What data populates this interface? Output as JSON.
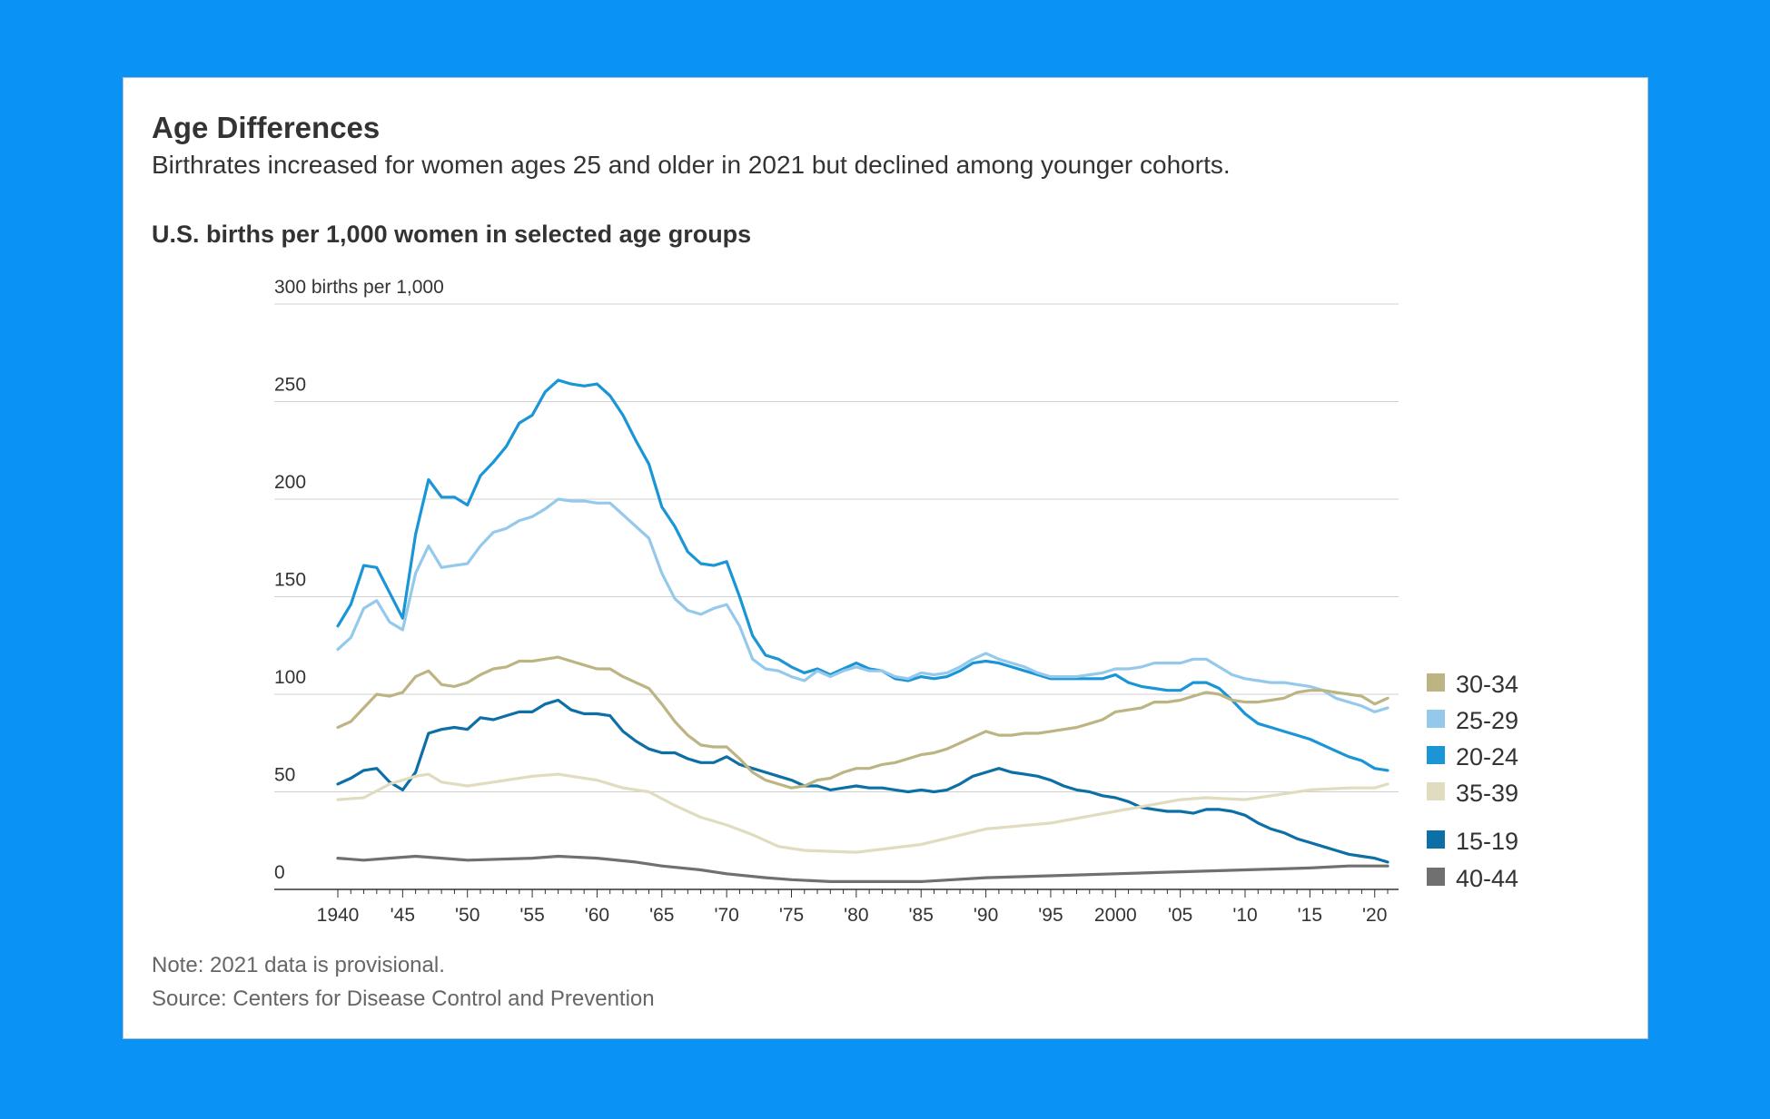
{
  "title": "Age Differences",
  "subtitle": "Birthrates increased for women ages 25 and older in 2021 but declined among younger cohorts.",
  "chart_title": "U.S. births per 1,000 women in selected age groups",
  "note": "Note: 2021 data is provisional.",
  "source": "Source: Centers for Disease Control and Prevention",
  "colors": {
    "background": "#0a93f5",
    "card": "#ffffff",
    "grid": "#d0d0d0",
    "axis": "#333333"
  },
  "chart_data": {
    "type": "line",
    "ylim": [
      0,
      300
    ],
    "xlim": [
      1940,
      2021
    ],
    "grid": true,
    "legend_position": "right",
    "y_ticks": [
      {
        "value": 0,
        "label": "0"
      },
      {
        "value": 50,
        "label": "50"
      },
      {
        "value": 100,
        "label": "100"
      },
      {
        "value": 150,
        "label": "150"
      },
      {
        "value": 200,
        "label": "200"
      },
      {
        "value": 250,
        "label": "250"
      },
      {
        "value": 300,
        "label": "300 births per 1,000"
      }
    ],
    "x_ticks": [
      {
        "value": 1940,
        "label": "1940"
      },
      {
        "value": 1945,
        "label": "'45"
      },
      {
        "value": 1950,
        "label": "'50"
      },
      {
        "value": 1955,
        "label": "'55"
      },
      {
        "value": 1960,
        "label": "'60"
      },
      {
        "value": 1965,
        "label": "'65"
      },
      {
        "value": 1970,
        "label": "'70"
      },
      {
        "value": 1975,
        "label": "'75"
      },
      {
        "value": 1980,
        "label": "'80"
      },
      {
        "value": 1985,
        "label": "'85"
      },
      {
        "value": 1990,
        "label": "'90"
      },
      {
        "value": 1995,
        "label": "'95"
      },
      {
        "value": 2000,
        "label": "2000"
      },
      {
        "value": 2005,
        "label": "'05"
      },
      {
        "value": 2010,
        "label": "'10"
      },
      {
        "value": 2015,
        "label": "'15"
      },
      {
        "value": 2020,
        "label": "'20"
      }
    ],
    "series": [
      {
        "name": "40-44",
        "color": "#707070",
        "legend_order": 5,
        "x": [
          1940,
          1942,
          1944,
          1946,
          1948,
          1950,
          1955,
          1957,
          1960,
          1963,
          1965,
          1968,
          1970,
          1973,
          1975,
          1978,
          1980,
          1985,
          1990,
          1995,
          2000,
          2005,
          2010,
          2015,
          2018,
          2021
        ],
        "y": [
          16,
          15,
          16,
          17,
          16,
          15,
          16,
          17,
          16,
          14,
          12,
          10,
          8,
          6,
          5,
          4,
          4,
          4,
          6,
          7,
          8,
          9,
          10,
          11,
          12,
          12
        ]
      },
      {
        "name": "15-19",
        "color": "#0c6fa6",
        "legend_order": 4,
        "x": [
          1940,
          1941,
          1942,
          1943,
          1944,
          1945,
          1946,
          1947,
          1948,
          1949,
          1950,
          1951,
          1952,
          1953,
          1954,
          1955,
          1956,
          1957,
          1958,
          1959,
          1960,
          1961,
          1962,
          1963,
          1964,
          1965,
          1966,
          1967,
          1968,
          1969,
          1970,
          1971,
          1972,
          1973,
          1974,
          1975,
          1976,
          1977,
          1978,
          1979,
          1980,
          1981,
          1982,
          1983,
          1984,
          1985,
          1986,
          1987,
          1988,
          1989,
          1990,
          1991,
          1992,
          1993,
          1994,
          1995,
          1996,
          1997,
          1998,
          1999,
          2000,
          2001,
          2002,
          2003,
          2004,
          2005,
          2006,
          2007,
          2008,
          2009,
          2010,
          2011,
          2012,
          2013,
          2014,
          2015,
          2016,
          2017,
          2018,
          2019,
          2020,
          2021
        ],
        "y": [
          54,
          57,
          61,
          62,
          55,
          51,
          60,
          80,
          82,
          83,
          82,
          88,
          87,
          89,
          91,
          91,
          95,
          97,
          92,
          90,
          90,
          89,
          81,
          76,
          72,
          70,
          70,
          67,
          65,
          65,
          68,
          64,
          62,
          60,
          58,
          56,
          53,
          53,
          51,
          52,
          53,
          52,
          52,
          51,
          50,
          51,
          50,
          51,
          54,
          58,
          60,
          62,
          60,
          59,
          58,
          56,
          53,
          51,
          50,
          48,
          47,
          45,
          42,
          41,
          40,
          40,
          39,
          41,
          41,
          40,
          38,
          34,
          31,
          29,
          26,
          24,
          22,
          20,
          18,
          17,
          16,
          14
        ]
      },
      {
        "name": "35-39",
        "color": "#e0dcbf",
        "legend_order": 3,
        "x": [
          1940,
          1942,
          1944,
          1946,
          1947,
          1948,
          1950,
          1952,
          1955,
          1957,
          1960,
          1962,
          1964,
          1966,
          1968,
          1970,
          1972,
          1974,
          1976,
          1980,
          1985,
          1990,
          1995,
          2000,
          2005,
          2007,
          2010,
          2015,
          2018,
          2020,
          2021
        ],
        "y": [
          46,
          47,
          54,
          58,
          59,
          55,
          53,
          55,
          58,
          59,
          56,
          52,
          50,
          43,
          37,
          33,
          28,
          22,
          20,
          19,
          23,
          31,
          34,
          40,
          46,
          47,
          46,
          51,
          52,
          52,
          54
        ]
      },
      {
        "name": "20-24",
        "color": "#1a95d6",
        "legend_order": 2,
        "x": [
          1940,
          1941,
          1942,
          1943,
          1944,
          1945,
          1946,
          1947,
          1948,
          1949,
          1950,
          1951,
          1952,
          1953,
          1954,
          1955,
          1956,
          1957,
          1958,
          1959,
          1960,
          1961,
          1962,
          1963,
          1964,
          1965,
          1966,
          1967,
          1968,
          1969,
          1970,
          1971,
          1972,
          1973,
          1974,
          1975,
          1976,
          1977,
          1978,
          1979,
          1980,
          1981,
          1982,
          1983,
          1984,
          1985,
          1986,
          1987,
          1988,
          1989,
          1990,
          1991,
          1992,
          1993,
          1994,
          1995,
          1996,
          1997,
          1998,
          1999,
          2000,
          2001,
          2002,
          2003,
          2004,
          2005,
          2006,
          2007,
          2008,
          2009,
          2010,
          2011,
          2012,
          2013,
          2014,
          2015,
          2016,
          2017,
          2018,
          2019,
          2020,
          2021
        ],
        "y": [
          135,
          146,
          166,
          165,
          152,
          139,
          182,
          210,
          201,
          201,
          197,
          212,
          219,
          227,
          239,
          243,
          255,
          261,
          259,
          258,
          259,
          253,
          243,
          230,
          218,
          196,
          186,
          173,
          167,
          166,
          168,
          150,
          130,
          120,
          118,
          114,
          111,
          113,
          110,
          113,
          116,
          113,
          112,
          108,
          107,
          109,
          108,
          109,
          112,
          116,
          117,
          116,
          114,
          112,
          110,
          108,
          108,
          108,
          108,
          108,
          110,
          106,
          104,
          103,
          102,
          102,
          106,
          106,
          103,
          97,
          90,
          85,
          83,
          81,
          79,
          77,
          74,
          71,
          68,
          66,
          62,
          61
        ]
      },
      {
        "name": "25-29",
        "color": "#95c9ec",
        "legend_order": 1,
        "x": [
          1940,
          1941,
          1942,
          1943,
          1944,
          1945,
          1946,
          1947,
          1948,
          1949,
          1950,
          1951,
          1952,
          1953,
          1954,
          1955,
          1956,
          1957,
          1958,
          1959,
          1960,
          1961,
          1962,
          1963,
          1964,
          1965,
          1966,
          1967,
          1968,
          1969,
          1970,
          1971,
          1972,
          1973,
          1974,
          1975,
          1976,
          1977,
          1978,
          1979,
          1980,
          1981,
          1982,
          1983,
          1984,
          1985,
          1986,
          1987,
          1988,
          1989,
          1990,
          1991,
          1992,
          1993,
          1994,
          1995,
          1996,
          1997,
          1998,
          1999,
          2000,
          2001,
          2002,
          2003,
          2004,
          2005,
          2006,
          2007,
          2008,
          2009,
          2010,
          2011,
          2012,
          2013,
          2014,
          2015,
          2016,
          2017,
          2018,
          2019,
          2020,
          2021
        ],
        "y": [
          123,
          129,
          144,
          148,
          137,
          133,
          162,
          176,
          165,
          166,
          167,
          176,
          183,
          185,
          189,
          191,
          195,
          200,
          199,
          199,
          198,
          198,
          192,
          186,
          180,
          162,
          149,
          143,
          141,
          144,
          146,
          135,
          118,
          113,
          112,
          109,
          107,
          112,
          109,
          112,
          114,
          112,
          112,
          109,
          108,
          111,
          110,
          111,
          114,
          118,
          121,
          118,
          116,
          114,
          111,
          109,
          109,
          109,
          110,
          111,
          113,
          113,
          114,
          116,
          116,
          116,
          118,
          118,
          114,
          110,
          108,
          107,
          106,
          106,
          105,
          104,
          102,
          98,
          96,
          94,
          91,
          93
        ]
      },
      {
        "name": "30-34",
        "color": "#bcb583",
        "legend_order": 0,
        "x": [
          1940,
          1941,
          1942,
          1943,
          1944,
          1945,
          1946,
          1947,
          1948,
          1949,
          1950,
          1951,
          1952,
          1953,
          1954,
          1955,
          1956,
          1957,
          1958,
          1959,
          1960,
          1961,
          1962,
          1963,
          1964,
          1965,
          1966,
          1967,
          1968,
          1969,
          1970,
          1971,
          1972,
          1973,
          1974,
          1975,
          1976,
          1977,
          1978,
          1979,
          1980,
          1981,
          1982,
          1983,
          1984,
          1985,
          1986,
          1987,
          1988,
          1989,
          1990,
          1991,
          1992,
          1993,
          1994,
          1995,
          1996,
          1997,
          1998,
          1999,
          2000,
          2001,
          2002,
          2003,
          2004,
          2005,
          2006,
          2007,
          2008,
          2009,
          2010,
          2011,
          2012,
          2013,
          2014,
          2015,
          2016,
          2017,
          2018,
          2019,
          2020,
          2021
        ],
        "y": [
          83,
          86,
          93,
          100,
          99,
          101,
          109,
          112,
          105,
          104,
          106,
          110,
          113,
          114,
          117,
          117,
          118,
          119,
          117,
          115,
          113,
          113,
          109,
          106,
          103,
          95,
          86,
          79,
          74,
          73,
          73,
          67,
          60,
          56,
          54,
          52,
          53,
          56,
          57,
          60,
          62,
          62,
          64,
          65,
          67,
          69,
          70,
          72,
          75,
          78,
          81,
          79,
          79,
          80,
          80,
          81,
          82,
          83,
          85,
          87,
          91,
          92,
          93,
          96,
          96,
          97,
          99,
          101,
          100,
          97,
          96,
          96,
          97,
          98,
          101,
          102,
          102,
          101,
          100,
          99,
          95,
          98
        ]
      }
    ]
  }
}
